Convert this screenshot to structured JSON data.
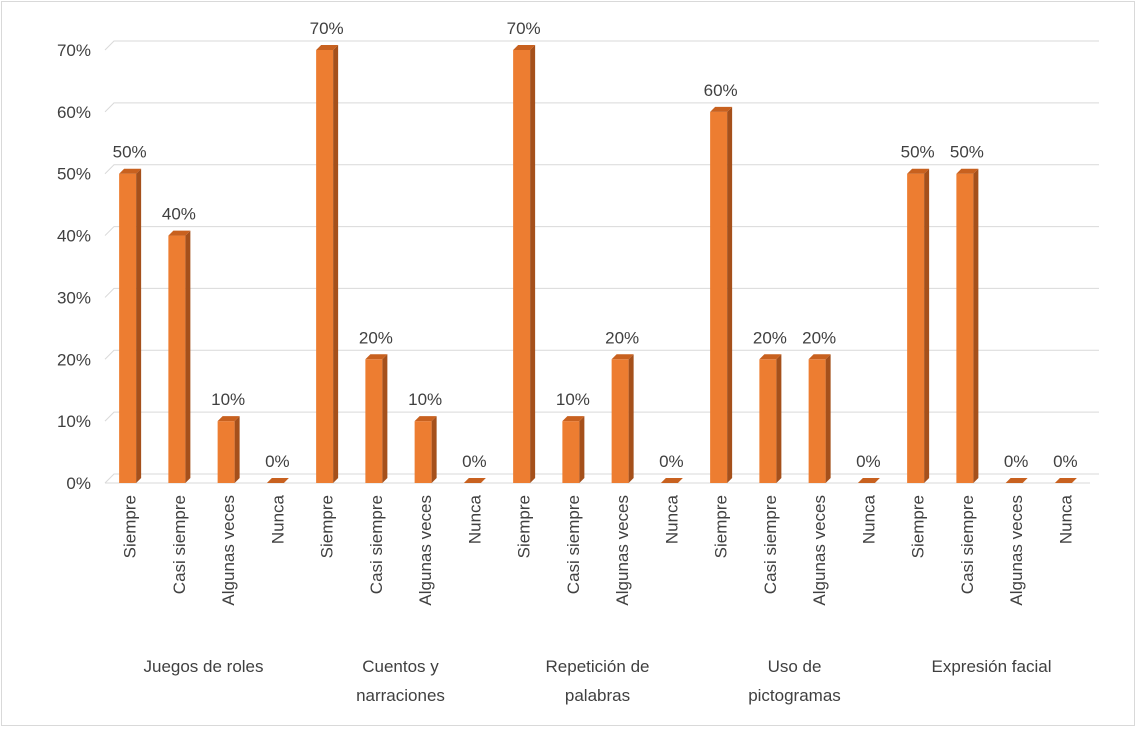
{
  "chart_data": {
    "type": "bar",
    "title": "",
    "xlabel": "",
    "ylabel": "",
    "ylim": [
      0,
      0.7
    ],
    "y_ticks": [
      "0%",
      "10%",
      "20%",
      "30%",
      "40%",
      "50%",
      "60%",
      "70%"
    ],
    "grid": true,
    "legend": "none",
    "bar_color": "#ed7d31",
    "groups": [
      {
        "name_lines": [
          "Juegos de roles"
        ],
        "bars": [
          {
            "category": "Siempre",
            "value": 0.5,
            "label": "50%"
          },
          {
            "category": "Casi siempre",
            "value": 0.4,
            "label": "40%"
          },
          {
            "category": "Algunas veces",
            "value": 0.1,
            "label": "10%"
          },
          {
            "category": "Nunca",
            "value": 0.0,
            "label": "0%"
          }
        ]
      },
      {
        "name_lines": [
          "Cuentos y",
          "narraciones"
        ],
        "bars": [
          {
            "category": "Siempre",
            "value": 0.7,
            "label": "70%"
          },
          {
            "category": "Casi siempre",
            "value": 0.2,
            "label": "20%"
          },
          {
            "category": "Algunas veces",
            "value": 0.1,
            "label": "10%"
          },
          {
            "category": "Nunca",
            "value": 0.0,
            "label": "0%"
          }
        ]
      },
      {
        "name_lines": [
          "Repetición de",
          "palabras"
        ],
        "bars": [
          {
            "category": "Siempre",
            "value": 0.7,
            "label": "70%"
          },
          {
            "category": "Casi siempre",
            "value": 0.1,
            "label": "10%"
          },
          {
            "category": "Algunas veces",
            "value": 0.2,
            "label": "20%"
          },
          {
            "category": "Nunca",
            "value": 0.0,
            "label": "0%"
          }
        ]
      },
      {
        "name_lines": [
          "Uso de",
          "pictogramas"
        ],
        "bars": [
          {
            "category": "Siempre",
            "value": 0.6,
            "label": "60%"
          },
          {
            "category": "Casi siempre",
            "value": 0.2,
            "label": "20%"
          },
          {
            "category": "Algunas veces",
            "value": 0.2,
            "label": "20%"
          },
          {
            "category": "Nunca",
            "value": 0.0,
            "label": "0%"
          }
        ]
      },
      {
        "name_lines": [
          "Expresión facial"
        ],
        "bars": [
          {
            "category": "Siempre",
            "value": 0.5,
            "label": "50%"
          },
          {
            "category": "Casi siempre",
            "value": 0.5,
            "label": "50%"
          },
          {
            "category": "Algunas veces",
            "value": 0.0,
            "label": "0%"
          },
          {
            "category": "Nunca",
            "value": 0.0,
            "label": "0%"
          }
        ]
      }
    ]
  }
}
